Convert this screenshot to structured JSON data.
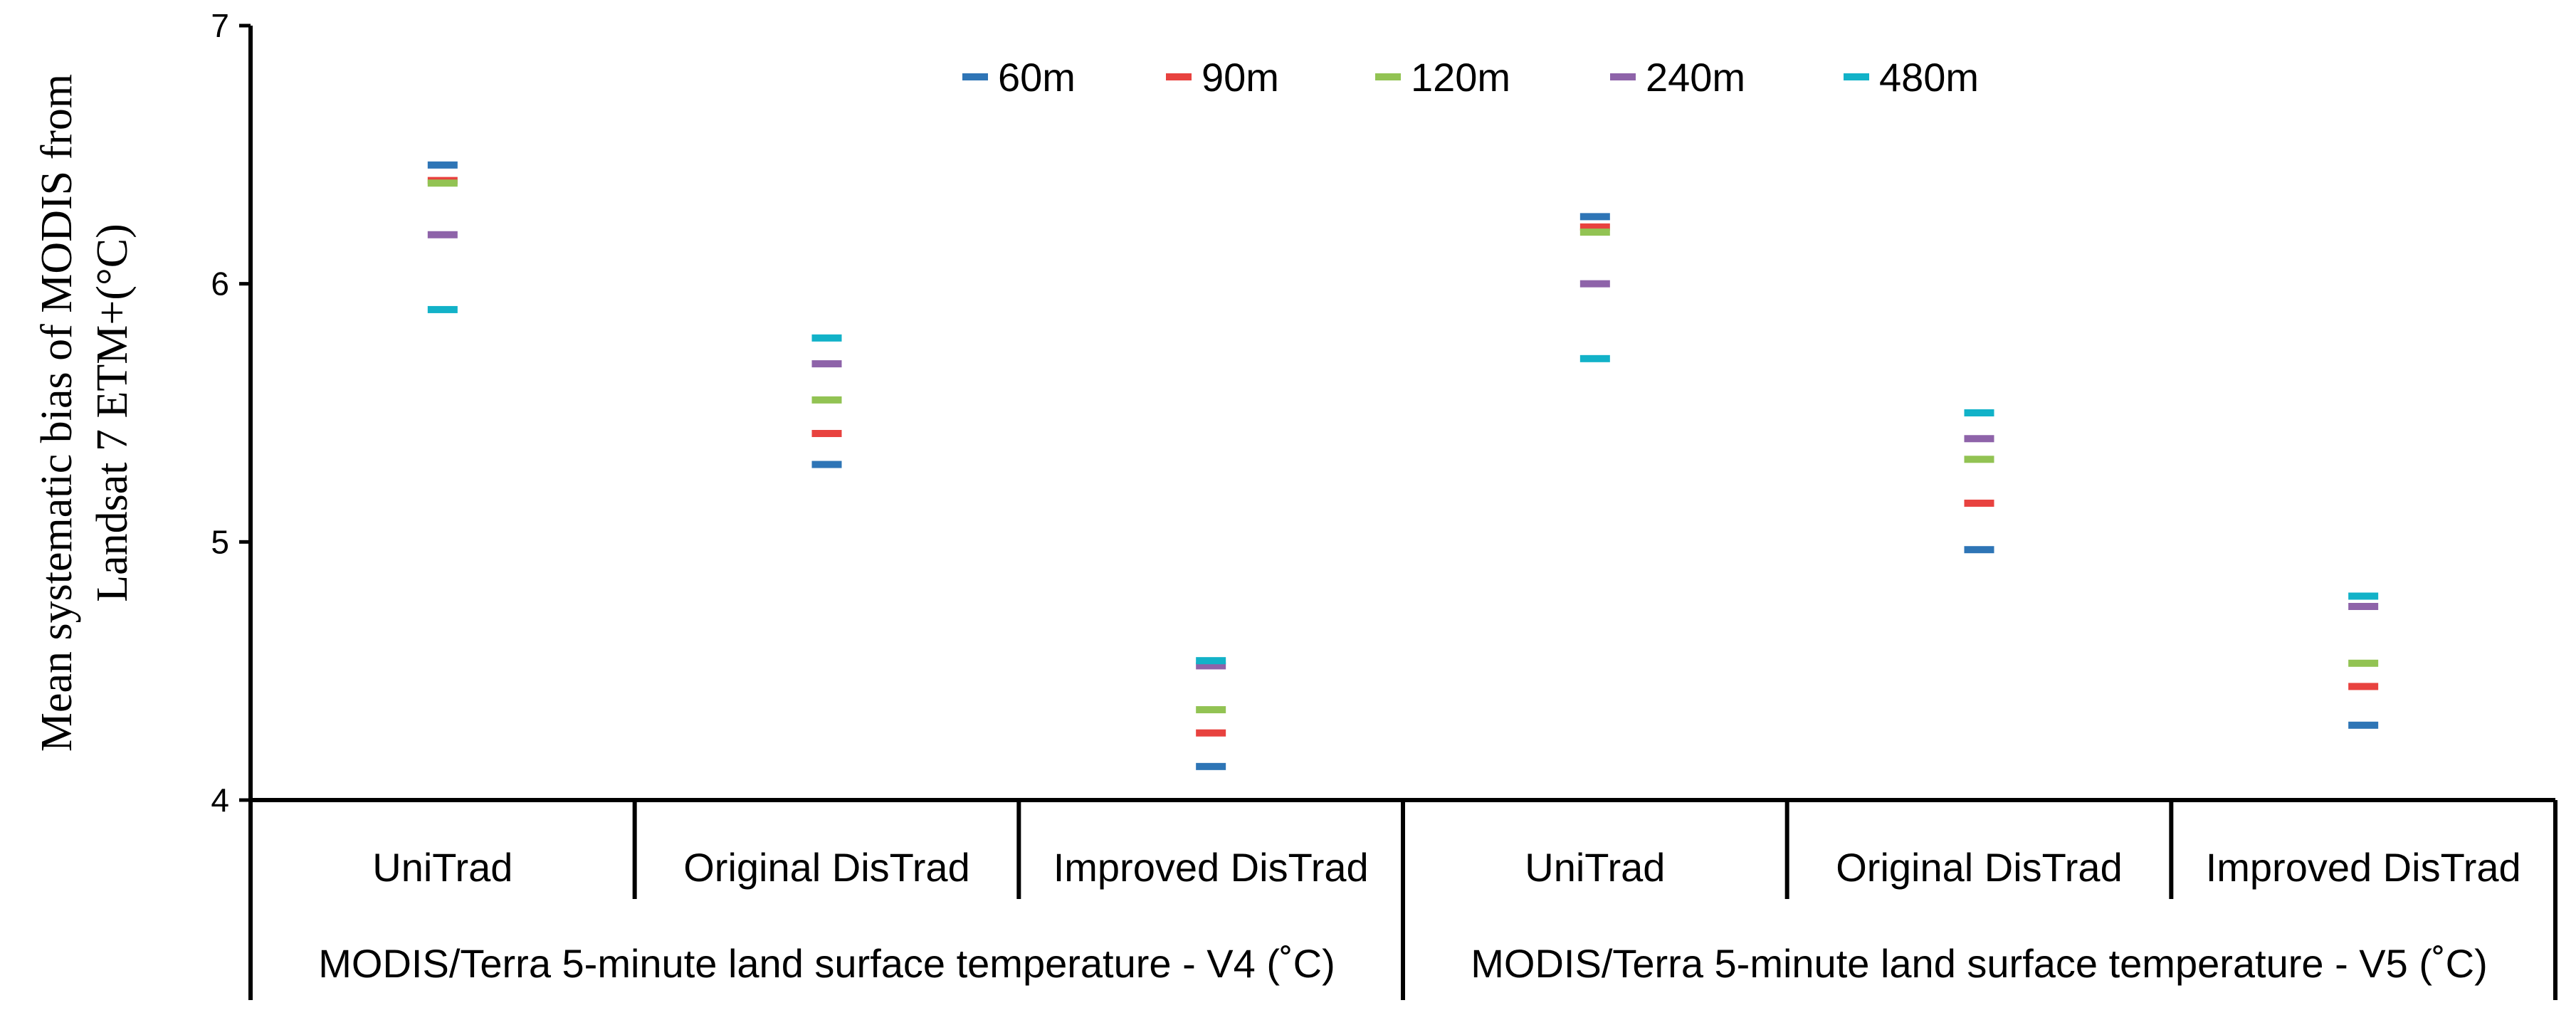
{
  "chart_data": {
    "type": "scatter",
    "title": "",
    "ylabel_lines": [
      "Mean systematic bias of MODIS from",
      "Landsat 7 ETM+(°C)"
    ],
    "ylim": [
      4,
      7
    ],
    "yticks": [
      4,
      5,
      6,
      7
    ],
    "xlabel": "",
    "categories": [
      "UniTrad",
      "Original DisTrad",
      "Improved DisTrad",
      "UniTrad",
      "Original DisTrad",
      "Improved DisTrad"
    ],
    "groups": [
      {
        "label": "MODIS/Terra 5-minute land surface temperature - V4 (˚C)",
        "span": 3
      },
      {
        "label": "MODIS/Terra 5-minute land surface temperature - V5 (˚C)",
        "span": 3
      }
    ],
    "legend_position": "top",
    "series": [
      {
        "name": "60m",
        "color": "#2e75b6",
        "values": [
          6.46,
          5.3,
          4.13,
          6.26,
          4.97,
          4.29
        ]
      },
      {
        "name": "90m",
        "color": "#e8423f",
        "values": [
          6.4,
          5.42,
          4.26,
          6.22,
          5.15,
          4.44
        ]
      },
      {
        "name": "120m",
        "color": "#92c353",
        "values": [
          6.39,
          5.55,
          4.35,
          6.2,
          5.32,
          4.53
        ]
      },
      {
        "name": "240m",
        "color": "#8e63a9",
        "values": [
          6.19,
          5.69,
          4.52,
          6.0,
          5.4,
          4.75
        ]
      },
      {
        "name": "480m",
        "color": "#12b2c8",
        "values": [
          5.9,
          5.79,
          4.54,
          5.71,
          5.5,
          4.79
        ]
      }
    ]
  }
}
